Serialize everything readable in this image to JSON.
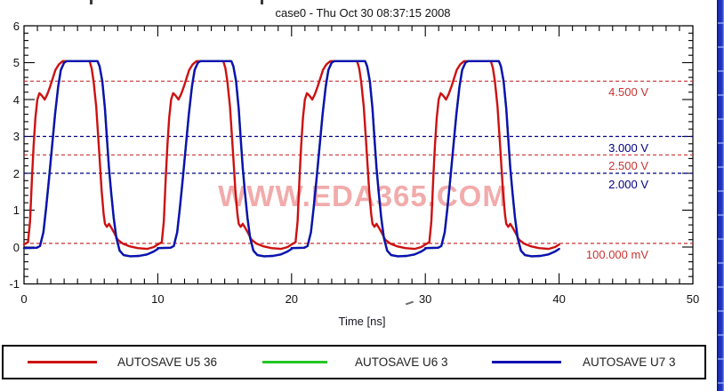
{
  "chart_data": {
    "type": "line",
    "title": "case0 - Thu Oct 30 08:37:15 2008",
    "xlabel": "Time [ns]",
    "ylabel": "",
    "xlim": [
      0,
      50
    ],
    "ylim": [
      -1,
      6
    ],
    "x_major_ticks": [
      0,
      10,
      20,
      30,
      40,
      50
    ],
    "x_minor_step": 1,
    "y_major_ticks": [
      -1,
      0,
      1,
      2,
      3,
      4,
      5,
      6
    ],
    "y_minor_step": 0.2,
    "grid": false,
    "legend_position": "bottom",
    "watermark": "WWW.EDA365.COM",
    "thresholds": [
      {
        "label": "4.500 V",
        "value": 4.5,
        "color": "#c83232"
      },
      {
        "label": "3.000 V",
        "value": 3.0,
        "color": "#000082"
      },
      {
        "label": "2.500 V",
        "value": 2.5,
        "color": "#c83232"
      },
      {
        "label": "2.000 V",
        "value": 2.0,
        "color": "#000082"
      },
      {
        "label": "100.000 mV",
        "value": 0.1,
        "color": "#c83232"
      }
    ],
    "series": [
      {
        "name": "AUTOSAVE U5 36",
        "color": "#cc1111",
        "visible": true,
        "period_ns": 10,
        "cycles": 4,
        "period_points": [
          [
            0.0,
            0.07
          ],
          [
            0.3,
            0.13
          ],
          [
            0.45,
            0.7
          ],
          [
            0.6,
            1.9
          ],
          [
            0.72,
            2.75
          ],
          [
            0.85,
            3.5
          ],
          [
            1.0,
            4.0
          ],
          [
            1.15,
            4.17
          ],
          [
            1.35,
            4.1
          ],
          [
            1.55,
            4.0
          ],
          [
            1.75,
            4.15
          ],
          [
            1.95,
            4.35
          ],
          [
            2.1,
            4.52
          ],
          [
            2.35,
            4.8
          ],
          [
            2.6,
            4.95
          ],
          [
            2.9,
            5.04
          ],
          [
            4.9,
            5.04
          ],
          [
            5.05,
            4.85
          ],
          [
            5.2,
            4.5
          ],
          [
            5.4,
            3.8
          ],
          [
            5.6,
            2.7
          ],
          [
            5.8,
            1.55
          ],
          [
            5.95,
            0.9
          ],
          [
            6.05,
            0.63
          ],
          [
            6.2,
            0.55
          ],
          [
            6.35,
            0.63
          ],
          [
            6.5,
            0.54
          ],
          [
            6.75,
            0.38
          ],
          [
            7.0,
            0.2
          ],
          [
            7.4,
            0.09
          ],
          [
            7.9,
            0.02
          ],
          [
            8.5,
            -0.03
          ],
          [
            9.2,
            -0.05
          ],
          [
            9.7,
            0.0
          ],
          [
            10.0,
            0.07
          ]
        ]
      },
      {
        "name": "AUTOSAVE U6 3",
        "color": "#22c822",
        "visible": false,
        "period_ns": 10,
        "cycles": 4,
        "period_points": [
          [
            0.0,
            -0.03
          ],
          [
            0.95,
            -0.02
          ],
          [
            1.2,
            0.03
          ],
          [
            1.45,
            0.4
          ],
          [
            1.65,
            1.05
          ],
          [
            1.87,
            1.85
          ],
          [
            2.1,
            2.75
          ],
          [
            2.32,
            3.6
          ],
          [
            2.55,
            4.35
          ],
          [
            2.75,
            4.8
          ],
          [
            3.0,
            5.0
          ],
          [
            3.2,
            5.04
          ],
          [
            5.5,
            5.04
          ],
          [
            5.65,
            4.9
          ],
          [
            5.85,
            4.5
          ],
          [
            6.05,
            3.75
          ],
          [
            6.2,
            2.95
          ],
          [
            6.35,
            2.15
          ],
          [
            6.52,
            1.45
          ],
          [
            6.7,
            0.8
          ],
          [
            6.9,
            0.25
          ],
          [
            7.15,
            -0.1
          ],
          [
            7.45,
            -0.22
          ],
          [
            7.95,
            -0.25
          ],
          [
            8.6,
            -0.24
          ],
          [
            9.2,
            -0.2
          ],
          [
            9.7,
            -0.12
          ],
          [
            10.0,
            -0.05
          ]
        ]
      },
      {
        "name": "AUTOSAVE U7 3",
        "color": "#0f0fb4",
        "visible": true,
        "period_ns": 10,
        "cycles": 4,
        "period_points": [
          [
            0.0,
            -0.03
          ],
          [
            0.95,
            -0.02
          ],
          [
            1.2,
            0.03
          ],
          [
            1.45,
            0.4
          ],
          [
            1.65,
            1.05
          ],
          [
            1.87,
            1.85
          ],
          [
            2.1,
            2.75
          ],
          [
            2.32,
            3.6
          ],
          [
            2.55,
            4.35
          ],
          [
            2.75,
            4.8
          ],
          [
            3.0,
            5.0
          ],
          [
            3.2,
            5.04
          ],
          [
            5.5,
            5.04
          ],
          [
            5.65,
            4.9
          ],
          [
            5.85,
            4.5
          ],
          [
            6.05,
            3.75
          ],
          [
            6.2,
            2.95
          ],
          [
            6.35,
            2.15
          ],
          [
            6.52,
            1.45
          ],
          [
            6.7,
            0.8
          ],
          [
            6.9,
            0.25
          ],
          [
            7.15,
            -0.1
          ],
          [
            7.45,
            -0.22
          ],
          [
            7.95,
            -0.25
          ],
          [
            8.6,
            -0.24
          ],
          [
            9.2,
            -0.2
          ],
          [
            9.7,
            -0.12
          ],
          [
            10.0,
            -0.05
          ]
        ]
      }
    ]
  },
  "legend": {
    "items": [
      {
        "label": "AUTOSAVE U5 36",
        "color": "#cc1111"
      },
      {
        "label": "AUTOSAVE U6 3",
        "color": "#22c822"
      },
      {
        "label": "AUTOSAVE U7 3",
        "color": "#0f0fb4"
      }
    ]
  }
}
